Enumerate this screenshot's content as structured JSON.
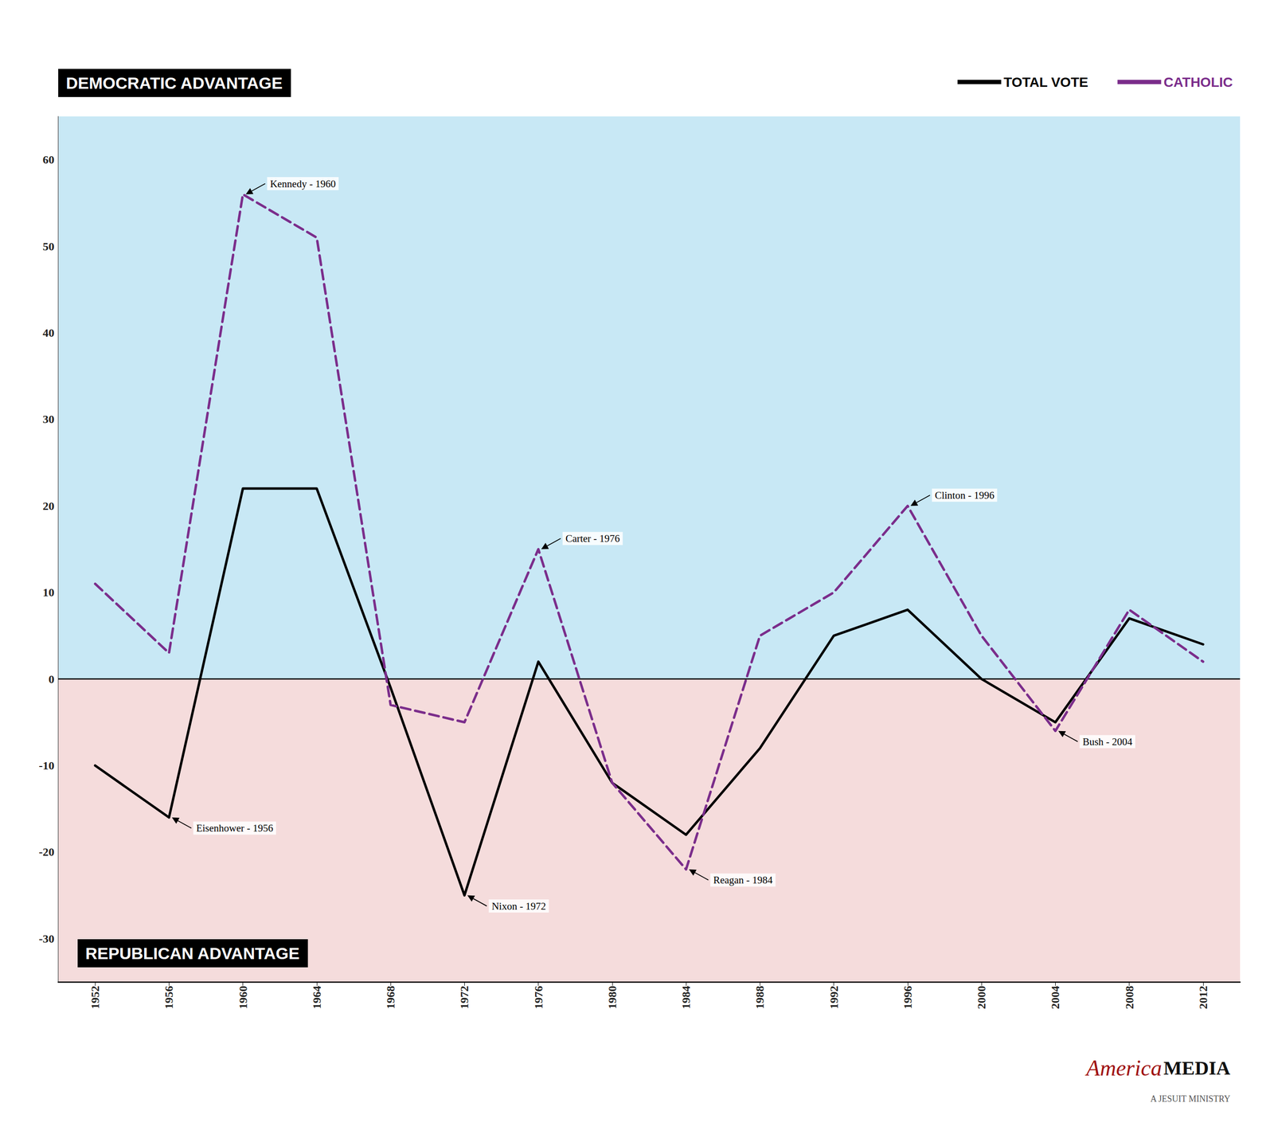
{
  "chart_data": {
    "type": "line",
    "x": [
      1952,
      1956,
      1960,
      1964,
      1968,
      1972,
      1976,
      1980,
      1984,
      1988,
      1992,
      1996,
      2000,
      2004,
      2008,
      2012
    ],
    "series": [
      {
        "name": "TOTAL VOTE",
        "color": "#000000",
        "line_style": "solid",
        "values": [
          -10,
          -16,
          22,
          22,
          -1,
          -25,
          2,
          -12,
          -18,
          -8,
          5,
          8,
          0,
          -5,
          7,
          4
        ]
      },
      {
        "name": "CATHOLIC",
        "color": "#7B2D8B",
        "line_style": "dashed",
        "values": [
          11,
          3,
          56,
          51,
          -3,
          -5,
          15,
          -12,
          -22,
          5,
          10,
          20,
          5,
          -6,
          8,
          2
        ]
      }
    ],
    "xlim": [
      1950,
      2014
    ],
    "xticks": [
      1952,
      1956,
      1960,
      1964,
      1968,
      1972,
      1976,
      1980,
      1984,
      1988,
      1992,
      1996,
      2000,
      2004,
      2008,
      2012
    ],
    "ylim": [
      -35,
      65
    ],
    "yticks": [
      -30,
      -20,
      -10,
      0,
      10,
      20,
      30,
      40,
      50,
      60
    ],
    "grid": true,
    "legend": "upper right",
    "annotations": [
      {
        "text": "Kennedy - 1960",
        "x": 1960,
        "y": 56
      },
      {
        "text": "Eisenhower - 1956",
        "x": 1956,
        "y": -16
      },
      {
        "text": "Nixon - 1972",
        "x": 1972,
        "y": -25
      },
      {
        "text": "Carter - 1976",
        "x": 1976,
        "y": 15
      },
      {
        "text": "Reagan - 1984",
        "x": 1984,
        "y": -22
      },
      {
        "text": "Clinton - 1996",
        "x": 1996,
        "y": 20
      },
      {
        "text": "Bush - 2004",
        "x": 2004,
        "y": -6
      },
      {
        "text": "DEMOCRATIC ADVANTAGE",
        "color": "#C8E8F5"
      },
      {
        "text": "REPUBLICAN ADVANTAGE",
        "color": "#F5DCDC"
      },
      {
        "text": "America",
        "color": "#A01010"
      },
      {
        "text": "MEDIA",
        "color": "#111111"
      },
      {
        "text": "A JESUIT MINISTRY",
        "color": "#555555"
      }
    ]
  }
}
